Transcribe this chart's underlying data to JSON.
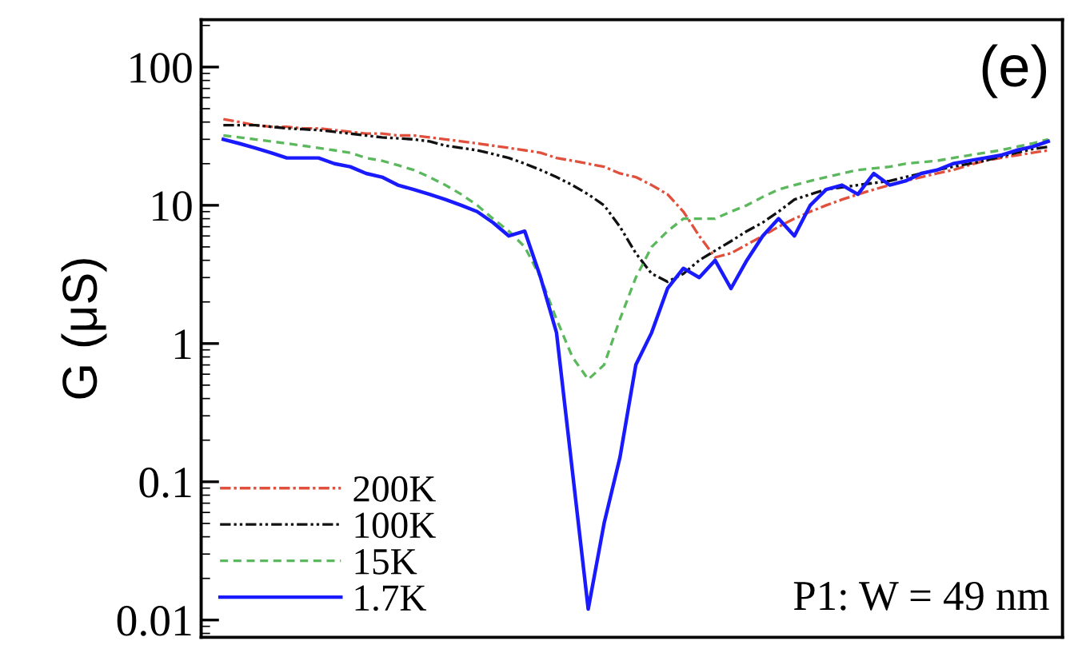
{
  "chart_data": {
    "type": "line",
    "ylabel": "G (μS)",
    "log": "y",
    "ylim": [
      0.0075,
      220
    ],
    "yticks": [
      0.01,
      0.1,
      1,
      10,
      100
    ],
    "categories": [
      null,
      null,
      null,
      null,
      null,
      null,
      null,
      null,
      null,
      null,
      null,
      null,
      null,
      null,
      null,
      null,
      null,
      null,
      null,
      null,
      null,
      null,
      null,
      null,
      null,
      null,
      null,
      null,
      null,
      null,
      null,
      null,
      null,
      null,
      null,
      null,
      null,
      null,
      null,
      null,
      null,
      null,
      null,
      null,
      null,
      null,
      null,
      null,
      null,
      null,
      null,
      null,
      null
    ],
    "tick_labels": "y",
    "legend": "bottom left",
    "annotations": [
      "(e)",
      "P1: W = 49 nm"
    ],
    "series": [
      {
        "name": "200K",
        "color": "#e0503c",
        "line_style": "dashdot",
        "values": [
          42,
          40,
          38,
          37,
          37,
          36,
          36,
          35,
          34,
          33,
          33,
          32,
          32,
          31,
          30,
          29,
          28,
          27,
          26,
          25,
          24,
          22,
          21,
          20,
          19,
          17,
          16,
          14,
          12,
          9,
          6,
          4.2,
          4.5,
          5.2,
          6,
          7,
          8,
          9,
          10,
          11,
          12,
          13,
          14,
          15,
          16,
          17,
          18,
          19.5,
          21,
          22,
          23,
          24,
          25
        ]
      },
      {
        "name": "100K",
        "color": "#111111",
        "line_style": "dashdotdot",
        "values": [
          38,
          38,
          38,
          37,
          36,
          35.5,
          35,
          34,
          33,
          32,
          31,
          30.5,
          30,
          29,
          27,
          26,
          25,
          23.5,
          22,
          20,
          18,
          16,
          14,
          12,
          10,
          7,
          4.5,
          3.2,
          2.8,
          3.2,
          4,
          4.7,
          5.5,
          6.5,
          7.5,
          9,
          11,
          12,
          13,
          13.5,
          14,
          14.5,
          15,
          16,
          17,
          18,
          19,
          20,
          21,
          22.5,
          24,
          25.5,
          26.5
        ]
      },
      {
        "name": "15K",
        "color": "#5cb85c",
        "line_style": "dashed",
        "values": [
          32,
          31,
          30,
          29,
          28,
          27,
          26,
          25,
          24,
          22,
          21,
          19.5,
          18,
          16,
          14,
          12,
          10,
          8,
          6.5,
          5,
          3,
          1.5,
          0.8,
          0.55,
          0.7,
          1.5,
          3,
          5,
          6.5,
          8,
          8,
          8,
          9,
          10,
          11.5,
          13,
          14,
          15,
          16,
          17,
          18,
          18.5,
          19,
          20,
          20.5,
          21,
          22,
          23,
          24,
          25,
          26.5,
          28,
          30
        ]
      },
      {
        "name": "1.7K",
        "color": "#1a1aff",
        "line_style": "solid",
        "values": [
          30,
          28,
          26,
          24,
          22,
          22,
          22,
          20,
          19,
          17,
          16,
          14,
          13,
          12,
          11,
          10,
          9,
          7.5,
          6,
          6.5,
          3,
          1.2,
          0.12,
          0.012,
          0.05,
          0.15,
          0.7,
          1.2,
          2.5,
          3.5,
          3,
          4,
          2.5,
          4,
          6,
          8,
          6,
          10,
          13,
          14,
          12,
          17,
          14,
          15,
          17,
          18,
          20,
          21,
          22,
          23,
          25,
          26.5,
          29
        ]
      }
    ]
  }
}
